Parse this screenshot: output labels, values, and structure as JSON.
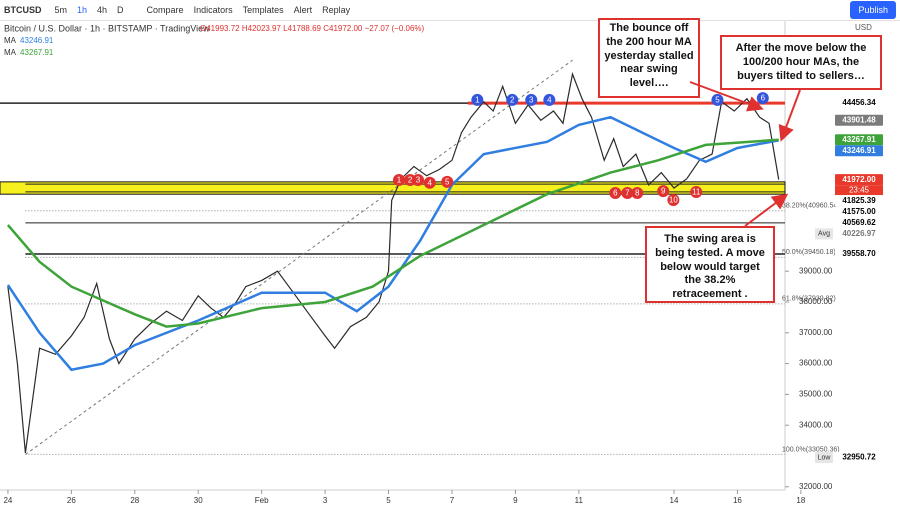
{
  "toolbar": {
    "symbol": "BTCUSD",
    "intervals": [
      "5m",
      "1h",
      "4h",
      "D"
    ],
    "buttons": [
      "Compare",
      "Indicators",
      "Templates",
      "Alert",
      "Replay"
    ],
    "publish": "Publish",
    "currency": "USD"
  },
  "chart_data": {
    "type": "line",
    "title": "Bitcoin / U.S. Dollar · 1h · BITSTAMP · TradingView",
    "ohlc": "O41993.72 H42023.97 L41788.69 C41972.00 −27.07 (−0.06%)",
    "xlim": [
      -0.25,
      24.5
    ],
    "ylim": [
      31571,
      46506
    ],
    "xticks": [
      {
        "value": 0,
        "label": "24"
      },
      {
        "value": 2,
        "label": "26"
      },
      {
        "value": 4,
        "label": "28"
      },
      {
        "value": 6,
        "label": "30"
      },
      {
        "value": 8,
        "label": "Feb"
      },
      {
        "value": 10,
        "label": "3"
      },
      {
        "value": 12,
        "label": "5"
      },
      {
        "value": 14,
        "label": "7"
      },
      {
        "value": 16,
        "label": "9"
      },
      {
        "value": 18,
        "label": "11"
      },
      {
        "value": 21,
        "label": "14"
      },
      {
        "value": 23,
        "label": "16"
      },
      {
        "value": 25,
        "label": "18"
      }
    ],
    "yticks": [
      {
        "value": 32000,
        "label": "32000.00"
      },
      {
        "value": 34000,
        "label": "34000.00"
      },
      {
        "value": 35000,
        "label": "35000.00"
      },
      {
        "value": 36000,
        "label": "36000.00"
      },
      {
        "value": 37000,
        "label": "37000.00"
      },
      {
        "value": 38000,
        "label": "38000.00"
      },
      {
        "value": 39000,
        "label": "39000.00"
      }
    ],
    "series": [
      {
        "name": "BTCUSD",
        "color": "#2b2b2b",
        "x": [
          0,
          0.3,
          0.55,
          0.8,
          1,
          1.5,
          2,
          2.4,
          2.8,
          3.2,
          3.5,
          4,
          4.5,
          5,
          5.5,
          6,
          6.4,
          6.8,
          7.2,
          7.5,
          8,
          8.5,
          9,
          9.5,
          10,
          10.3,
          10.8,
          11.3,
          11.7,
          12,
          12.1,
          12.4,
          12.8,
          13.2,
          13.6,
          14,
          14.3,
          14.6,
          15,
          15.3,
          15.6,
          16,
          16.4,
          16.8,
          17.2,
          17.5,
          17.8,
          18.1,
          18.4,
          18.8,
          19.1,
          19.4,
          19.8,
          20.2,
          20.6,
          21,
          21.4,
          21.8,
          22.2,
          22.5,
          22.9,
          23.3,
          23.7,
          24,
          24.3
        ],
        "values": [
          38500,
          36000,
          33100,
          35000,
          36500,
          36300,
          36900,
          37500,
          38600,
          36800,
          36000,
          36800,
          37300,
          37700,
          37400,
          38200,
          37800,
          37500,
          38000,
          38500,
          38700,
          39000,
          38300,
          37600,
          36900,
          36500,
          37200,
          37500,
          38000,
          39000,
          41300,
          42000,
          42400,
          42100,
          42300,
          42600,
          43500,
          44000,
          44500,
          44200,
          45000,
          43800,
          44400,
          43900,
          44200,
          43800,
          45400,
          44600,
          44000,
          42600,
          43300,
          42400,
          42800,
          41800,
          42200,
          41700,
          42000,
          42600,
          42800,
          44500,
          44200,
          44600,
          44000,
          43800,
          41972
        ]
      },
      {
        "name": "MA",
        "color": "#2f7ee0",
        "legend_value": 43246.91,
        "x": [
          0,
          1,
          2,
          3,
          4,
          6,
          8,
          10,
          11,
          12,
          13,
          14,
          15,
          17,
          18,
          19,
          20,
          21,
          22,
          23,
          24.3
        ],
        "values": [
          38550,
          37000,
          35800,
          36000,
          36600,
          37400,
          38300,
          38300,
          37700,
          38500,
          40000,
          41800,
          42800,
          43200,
          43750,
          44000,
          43500,
          43000,
          42550,
          43000,
          43246.91
        ]
      },
      {
        "name": "MA",
        "color": "#3ea33a",
        "legend_value": 43267.91,
        "x": [
          0,
          1,
          2,
          4,
          5,
          6,
          8,
          10,
          11.5,
          13,
          15,
          17,
          19,
          20.5,
          22,
          24.3
        ],
        "values": [
          40500,
          39300,
          38500,
          37600,
          37200,
          37300,
          37800,
          38000,
          38500,
          39500,
          40500,
          41500,
          42200,
          42600,
          43100,
          43267.91
        ]
      }
    ],
    "levels": [
      44456.34,
      41825.39,
      41575,
      40569.62,
      39558.7
    ],
    "resistance": {
      "x": [
        14.5,
        24.5
      ],
      "value": 44456.34,
      "color": "#e8392b"
    },
    "swing_band": [
      41500,
      41900
    ],
    "fib": {
      "trend_x": [
        0.55,
        17.8
      ],
      "trend_values": [
        33050.36,
        45850
      ],
      "levels": [
        {
          "value": 40960.54,
          "label": "38.20%(40960.54)"
        },
        {
          "value": 39450.18,
          "label": "50.0%(39450.18)"
        },
        {
          "value": 37939.82,
          "label": "61.8%(37939.82)"
        },
        {
          "value": 33050.36,
          "label": "100.0%(33050.36)"
        }
      ]
    },
    "price_labels": [
      {
        "value": 44456.34,
        "label": "44456.34",
        "bg": "#ffffff",
        "fg": "#000"
      },
      {
        "value": 43901.48,
        "label": "43901.48",
        "bg": "#7b7b7b",
        "fg": "#fff"
      },
      {
        "value": 43267.91,
        "label": "43267.91",
        "bg": "#3ea33a",
        "fg": "#fff"
      },
      {
        "value": 43246.91,
        "label": "43246.91",
        "bg": "#2f7ee0",
        "fg": "#fff"
      },
      {
        "value": 41972,
        "label": "41972.00",
        "bg": "#e8392b",
        "fg": "#fff",
        "sub": "23:45"
      },
      {
        "value": 41825.39,
        "label": "41825.39",
        "bg": "#ffffff",
        "fg": "#000"
      },
      {
        "value": 41575,
        "label": "41575.00",
        "bg": "#ffffff",
        "fg": "#000"
      },
      {
        "value": 40569.62,
        "label": "40569.62",
        "bg": "#ffffff",
        "fg": "#000"
      },
      {
        "value": 40226.97,
        "label": "40226.97",
        "bg": "#ffffff",
        "fg": "#777",
        "tag": "Avg"
      },
      {
        "value": 39558.7,
        "label": "39558.70",
        "bg": "#ffffff",
        "fg": "#000"
      },
      {
        "value": 32950.72,
        "label": "32950.72",
        "bg": "#ffffff",
        "fg": "#000",
        "tag": "Low"
      }
    ],
    "markers": [
      {
        "label": "1",
        "x": 14.8,
        "value": 44560,
        "color": "#3355dd"
      },
      {
        "label": "2",
        "x": 15.9,
        "value": 44560,
        "color": "#3355dd"
      },
      {
        "label": "3",
        "x": 16.5,
        "value": 44560,
        "color": "#3355dd"
      },
      {
        "label": "4",
        "x": 17.07,
        "value": 44560,
        "color": "#3355dd"
      },
      {
        "label": "5",
        "x": 22.37,
        "value": 44560,
        "color": "#3355dd"
      },
      {
        "label": "6",
        "x": 23.8,
        "value": 44620,
        "color": "#3355dd"
      },
      {
        "label": "1",
        "x": 12.33,
        "value": 41961,
        "color": "#e03131"
      },
      {
        "label": "2",
        "x": 12.68,
        "value": 41961,
        "color": "#e03131"
      },
      {
        "label": "3",
        "x": 12.93,
        "value": 41961,
        "color": "#e03131"
      },
      {
        "label": "4",
        "x": 13.3,
        "value": 41870,
        "color": "#e03131"
      },
      {
        "label": "5",
        "x": 13.85,
        "value": 41900,
        "color": "#e03131"
      },
      {
        "label": "6",
        "x": 19.15,
        "value": 41540,
        "color": "#e03131"
      },
      {
        "label": "7",
        "x": 19.53,
        "value": 41540,
        "color": "#e03131"
      },
      {
        "label": "8",
        "x": 19.84,
        "value": 41540,
        "color": "#e03131"
      },
      {
        "label": "9",
        "x": 20.66,
        "value": 41600,
        "color": "#e03131"
      },
      {
        "label": "10",
        "x": 20.98,
        "value": 41310,
        "color": "#e03131"
      },
      {
        "label": "11",
        "x": 21.7,
        "value": 41570,
        "color": "#e03131"
      }
    ],
    "annotations": [
      "The bounce off the 200 hour MA yesterday stalled near swing level….",
      "After the move below the 100/200 hour MAs, the buyers tilted to sellers…",
      "The swing area is being tested.  A move below would target the 38.2% retraceement ."
    ]
  }
}
